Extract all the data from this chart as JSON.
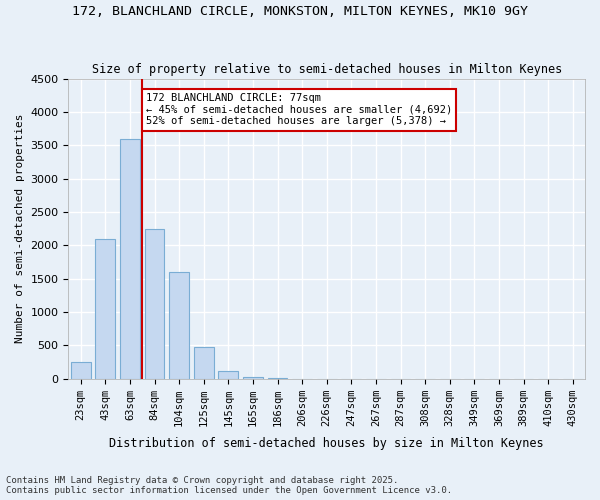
{
  "title_line1": "172, BLANCHLAND CIRCLE, MONKSTON, MILTON KEYNES, MK10 9GY",
  "title_line2": "Size of property relative to semi-detached houses in Milton Keynes",
  "xlabel": "Distribution of semi-detached houses by size in Milton Keynes",
  "ylabel": "Number of semi-detached properties",
  "footnote": "Contains HM Land Registry data © Crown copyright and database right 2025.\nContains public sector information licensed under the Open Government Licence v3.0.",
  "bar_labels": [
    "23sqm",
    "43sqm",
    "63sqm",
    "84sqm",
    "104sqm",
    "125sqm",
    "145sqm",
    "165sqm",
    "186sqm",
    "206sqm",
    "226sqm",
    "247sqm",
    "267sqm",
    "287sqm",
    "308sqm",
    "328sqm",
    "349sqm",
    "369sqm",
    "389sqm",
    "410sqm",
    "430sqm"
  ],
  "bar_values": [
    250,
    2100,
    3600,
    2250,
    1600,
    480,
    120,
    30,
    5,
    0,
    0,
    0,
    0,
    0,
    0,
    0,
    0,
    0,
    0,
    0,
    0
  ],
  "bar_color": "#c5d8f0",
  "bar_edge_color": "#7aadd4",
  "background_color": "#e8f0f8",
  "grid_color": "#ffffff",
  "property_size": 77,
  "property_label": "172 BLANCHLAND CIRCLE: 77sqm",
  "pct_smaller": 45,
  "num_smaller": 4692,
  "pct_larger": 52,
  "num_larger": 5378,
  "vline_color": "#cc0000",
  "annotation_box_color": "#cc0000",
  "ylim": [
    0,
    4500
  ],
  "yticks": [
    0,
    500,
    1000,
    1500,
    2000,
    2500,
    3000,
    3500,
    4000,
    4500
  ],
  "vline_x_index": 2.1
}
